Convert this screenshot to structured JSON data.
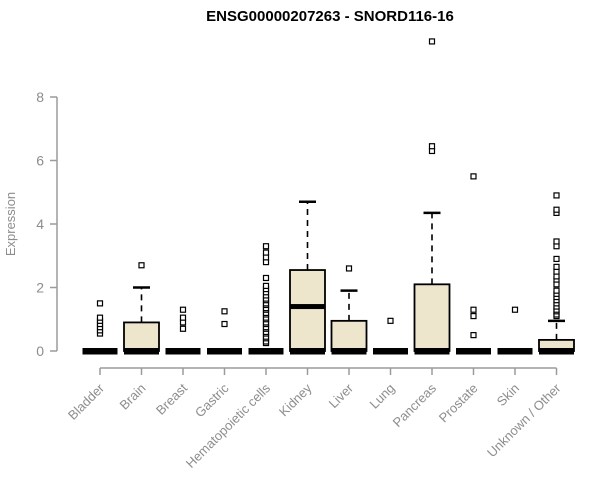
{
  "chart_data": {
    "type": "boxplot",
    "title": "ENSG00000207263 - SNORD116-16",
    "ylabel": "Expression",
    "xlabel": "",
    "yticks": [
      0,
      2,
      4,
      6,
      8
    ],
    "ylim": [
      0,
      9.9
    ],
    "grid": false,
    "legend": "none",
    "categories": [
      "Bladder",
      "Brain",
      "Breast",
      "Gastric",
      "Hematopoietic cells",
      "Kidney",
      "Liver",
      "Lung",
      "Pancreas",
      "Prostate",
      "Skin",
      "Unknown / Other"
    ],
    "series": [
      {
        "category": "Bladder",
        "q1": 0,
        "median": 0,
        "q3": 0,
        "whisker_low": 0,
        "whisker_high": 0,
        "outliers": [
          0.55,
          0.65,
          0.75,
          0.85,
          0.95,
          1.05,
          1.5
        ]
      },
      {
        "category": "Brain",
        "q1": 0,
        "median": 0,
        "q3": 0.9,
        "whisker_low": 0,
        "whisker_high": 2.0,
        "outliers": [
          2.7
        ]
      },
      {
        "category": "Breast",
        "q1": 0,
        "median": 0,
        "q3": 0,
        "whisker_low": 0,
        "whisker_high": 0,
        "outliers": [
          0.7,
          0.9,
          1.05,
          1.3
        ]
      },
      {
        "category": "Gastric",
        "q1": 0,
        "median": 0,
        "q3": 0,
        "whisker_low": 0,
        "whisker_high": 0,
        "outliers": [
          0.85,
          1.25
        ]
      },
      {
        "category": "Hematopoietic cells",
        "q1": 0,
        "median": 0,
        "q3": 0,
        "whisker_low": 0,
        "whisker_high": 0,
        "outliers": [
          0.25,
          0.3,
          0.4,
          0.45,
          0.55,
          0.6,
          0.7,
          0.75,
          0.85,
          0.9,
          1.0,
          1.05,
          1.15,
          1.2,
          1.3,
          1.35,
          1.45,
          1.5,
          1.6,
          1.65,
          1.75,
          1.85,
          1.95,
          2.05,
          2.3,
          2.8,
          2.95,
          3.1,
          3.3
        ]
      },
      {
        "category": "Kidney",
        "q1": 0,
        "median": 1.4,
        "q3": 2.55,
        "whisker_low": 0,
        "whisker_high": 4.7,
        "outliers": []
      },
      {
        "category": "Liver",
        "q1": 0,
        "median": 0,
        "q3": 0.95,
        "whisker_low": 0,
        "whisker_high": 1.9,
        "outliers": [
          2.6
        ]
      },
      {
        "category": "Lung",
        "q1": 0,
        "median": 0,
        "q3": 0,
        "whisker_low": 0,
        "whisker_high": 0,
        "outliers": [
          0.95
        ]
      },
      {
        "category": "Pancreas",
        "q1": 0,
        "median": 0,
        "q3": 2.1,
        "whisker_low": 0,
        "whisker_high": 4.35,
        "outliers": [
          6.3,
          6.45,
          9.75
        ]
      },
      {
        "category": "Prostate",
        "q1": 0,
        "median": 0,
        "q3": 0,
        "whisker_low": 0,
        "whisker_high": 0,
        "outliers": [
          0.5,
          1.1,
          1.3,
          5.5
        ]
      },
      {
        "category": "Skin",
        "q1": 0,
        "median": 0,
        "q3": 0,
        "whisker_low": 0,
        "whisker_high": 0,
        "outliers": [
          1.3
        ]
      },
      {
        "category": "Unknown / Other",
        "q1": 0,
        "median": 0,
        "q3": 0.35,
        "whisker_low": 0,
        "whisker_high": 0.95,
        "outliers": [
          1.1,
          1.15,
          1.25,
          1.3,
          1.4,
          1.5,
          1.6,
          1.7,
          1.8,
          1.9,
          2.1,
          2.25,
          2.35,
          2.5,
          2.65,
          2.9,
          3.3,
          3.45,
          4.35,
          4.45,
          4.9
        ]
      }
    ],
    "colors": {
      "box_fill": "#EDE6CD",
      "box_border": "#000000",
      "axis_color": "#9b9b9b",
      "label_color": "#8d8d8d",
      "title_color": "#000000",
      "background": "#ffffff"
    }
  }
}
